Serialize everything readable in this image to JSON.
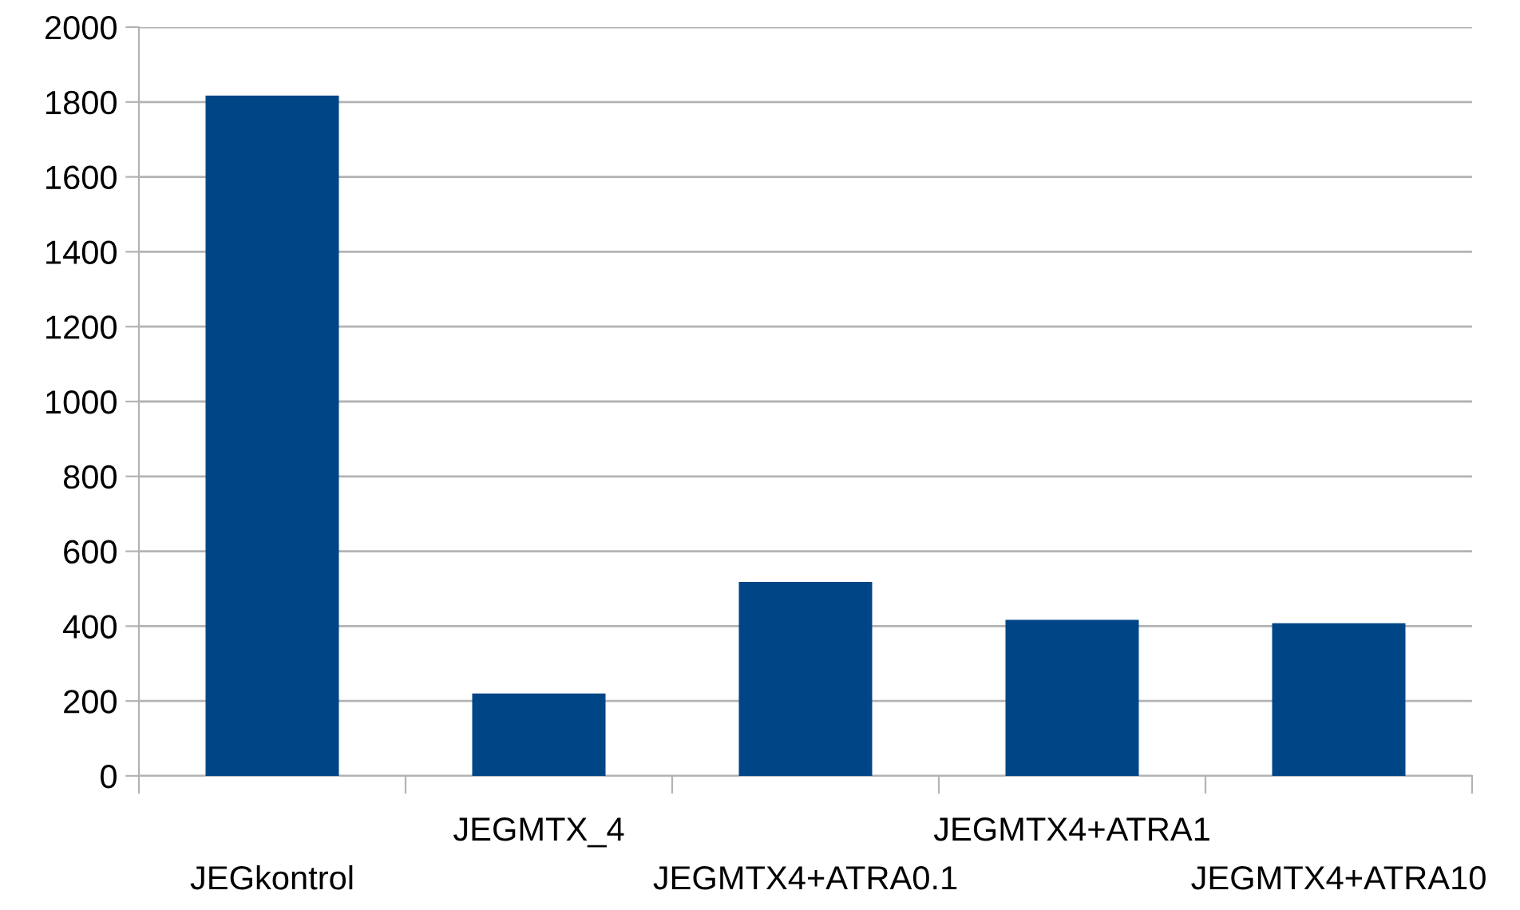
{
  "chart_data": {
    "type": "bar",
    "categories": [
      "JEGkontrol",
      "JEGMTX_4",
      "JEGMTX4+ATRA0.1",
      "JEGMTX4+ATRA1",
      "JEGMTX4+ATRA10"
    ],
    "values": [
      1817,
      220,
      518,
      417,
      408
    ],
    "color": "#004586",
    "ylim": [
      0,
      2000
    ],
    "yticks": [
      0,
      200,
      400,
      600,
      800,
      1000,
      1200,
      1400,
      1600,
      1800,
      2000
    ],
    "grid": "y",
    "legend": false
  }
}
